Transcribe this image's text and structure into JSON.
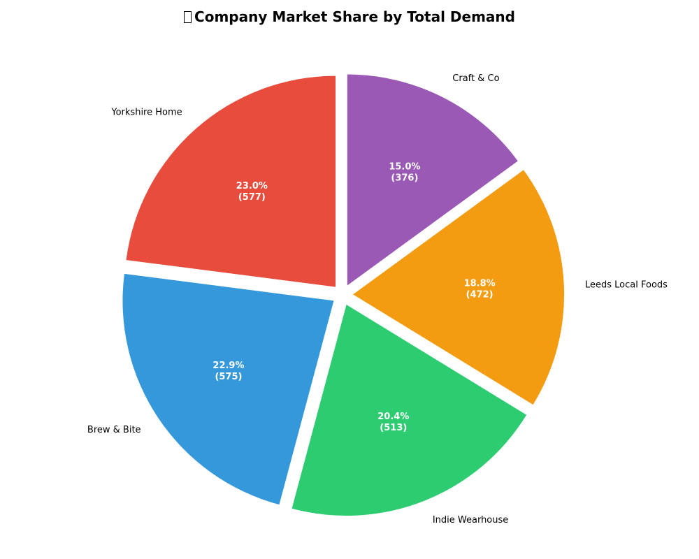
{
  "chart_data": {
    "type": "pie",
    "title": "Company Market Share by Total Demand",
    "title_icon": "chart-emoji-icon",
    "categories": [
      "Yorkshire Home",
      "Brew & Bite",
      "Indie Wearhouse",
      "Leeds Local Foods",
      "Craft & Co"
    ],
    "values": [
      577,
      575,
      513,
      472,
      376
    ],
    "percent_labels": [
      "23.0%",
      "22.9%",
      "20.4%",
      "18.8%",
      "15.0%"
    ],
    "value_labels": [
      "(577)",
      "(575)",
      "(513)",
      "(472)",
      "(376)"
    ],
    "colors": [
      "#e74c3c",
      "#3498db",
      "#2ecc71",
      "#f39c12",
      "#9b59b6"
    ],
    "start_angle": 90,
    "direction": "counterclockwise",
    "exploded": true
  }
}
